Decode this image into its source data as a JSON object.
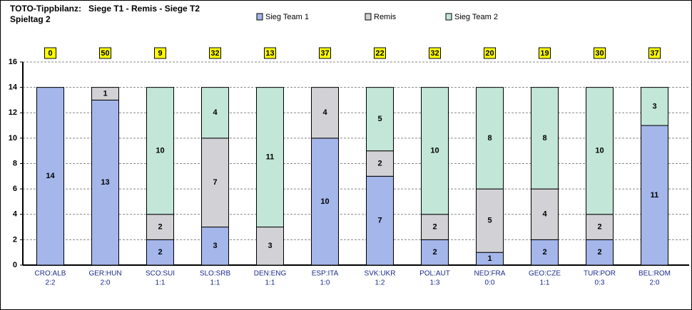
{
  "chart_data": {
    "type": "stacked_bar",
    "title": "TOTO-Tippbilanz:   Siege T1 - Remis - Siege T2",
    "subtitle": "Spieltag 2",
    "categories": [
      "CRO:ALB",
      "GER:HUN",
      "SCO:SUI",
      "SLO:SRB",
      "DEN:ENG",
      "ESP:ITA",
      "SVK:UKR",
      "POL:AUT",
      "NED:FRA",
      "GEO:CZE",
      "TUR:POR",
      "BEL:ROM"
    ],
    "results": [
      "2:2",
      "2:0",
      "1:1",
      "1:1",
      "1:1",
      "1:0",
      "1:2",
      "1:3",
      "0:0",
      "1:1",
      "0:3",
      "2:0"
    ],
    "points": [
      0,
      50,
      9,
      32,
      13,
      37,
      22,
      32,
      20,
      19,
      30,
      37
    ],
    "series": [
      {
        "name": "Sieg Team 1",
        "color": "#a4b6ea",
        "values": [
          14,
          13,
          2,
          3,
          0,
          10,
          7,
          2,
          1,
          2,
          2,
          11
        ]
      },
      {
        "name": "Remis",
        "color": "#d2d2d6",
        "values": [
          0,
          1,
          2,
          7,
          3,
          4,
          2,
          2,
          5,
          4,
          2,
          0
        ]
      },
      {
        "name": "Sieg Team 2",
        "color": "#c2e6d8",
        "values": [
          0,
          0,
          10,
          4,
          11,
          0,
          5,
          10,
          8,
          8,
          10,
          3
        ]
      }
    ],
    "ylim": [
      0,
      16
    ],
    "yticks": [
      0,
      2,
      4,
      6,
      8,
      10,
      12,
      14,
      16
    ],
    "grid": true
  }
}
